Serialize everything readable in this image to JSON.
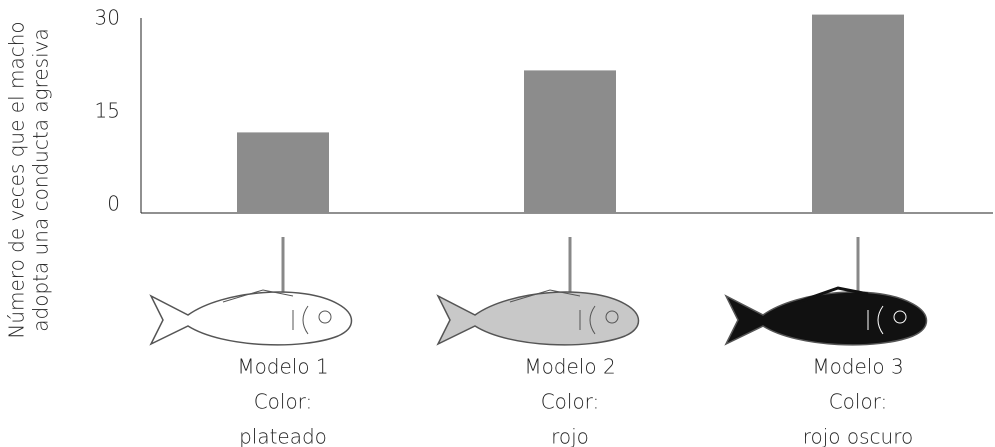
{
  "chart_data": {
    "type": "bar",
    "y_label": [
      "Número de veces que el macho",
      "adopta una conducta agresiva"
    ],
    "categories": [
      [
        "Modelo 1",
        "Color:",
        "plateado"
      ],
      [
        "Modelo 2",
        "Color:",
        "rojo"
      ],
      [
        "Modelo 3",
        "Color:",
        "rojo oscuro"
      ]
    ],
    "values": [
      13,
      23,
      32
    ],
    "color": "#8c8c8c",
    "ylim": [
      0,
      32
    ],
    "yticks": [
      0,
      15,
      30
    ],
    "grid": false
  }
}
